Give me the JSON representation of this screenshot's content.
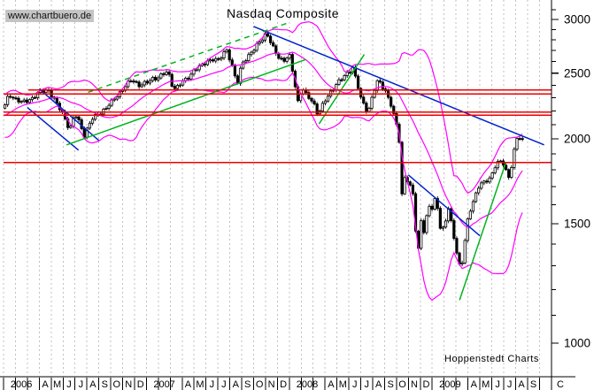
{
  "watermark": {
    "text": "www.chartbuero.de"
  },
  "header": {
    "title": "Nasdaq Composite"
  },
  "footer": {
    "credit": "Hoppenstedt Charts"
  },
  "colors": {
    "price": "#000000",
    "bollinger_band": "#ff00ff",
    "trend_line_blue": "#0022cc",
    "trend_line_green": "#00b41e",
    "level_line_red": "#ee0000",
    "grid": "#c0c0c0",
    "axis": "#000000",
    "watermark_bg": "#c4c4c4"
  },
  "chart_data": {
    "type": "candlestick",
    "title": "Nasdaq Composite",
    "timeframe": "weekly",
    "x_start": "2006-01",
    "x_end": "2009-09",
    "y_scale": "log",
    "ylim": [
      950,
      3150
    ],
    "grid": "vertical-dashed-monthly",
    "y_axis_side": "right",
    "y_ticks": [
      3000,
      2500,
      2000,
      1500,
      1000
    ],
    "y_minor_ticks": [
      3100,
      2900,
      2800,
      2700,
      2600,
      2400,
      2300,
      2200,
      2100,
      1900,
      1800,
      1700,
      1600,
      1400,
      1300,
      1200,
      1100
    ],
    "x_labels": [
      {
        "label": "2006",
        "span": 3
      },
      {
        "label": "A",
        "span": 1
      },
      {
        "label": "M",
        "span": 1
      },
      {
        "label": "J",
        "span": 1
      },
      {
        "label": "J",
        "span": 1
      },
      {
        "label": "A",
        "span": 1
      },
      {
        "label": "S",
        "span": 1
      },
      {
        "label": "O",
        "span": 1
      },
      {
        "label": "N",
        "span": 1
      },
      {
        "label": "D",
        "span": 1
      },
      {
        "label": "2007",
        "span": 3
      },
      {
        "label": "A",
        "span": 1
      },
      {
        "label": "M",
        "span": 1
      },
      {
        "label": "J",
        "span": 1
      },
      {
        "label": "J",
        "span": 1
      },
      {
        "label": "A",
        "span": 1
      },
      {
        "label": "S",
        "span": 1
      },
      {
        "label": "O",
        "span": 1
      },
      {
        "label": "N",
        "span": 1
      },
      {
        "label": "D",
        "span": 1
      },
      {
        "label": "2008",
        "span": 3
      },
      {
        "label": "A",
        "span": 1
      },
      {
        "label": "M",
        "span": 1
      },
      {
        "label": "J",
        "span": 1
      },
      {
        "label": "J",
        "span": 1
      },
      {
        "label": "A",
        "span": 1
      },
      {
        "label": "S",
        "span": 1
      },
      {
        "label": "O",
        "span": 1
      },
      {
        "label": "N",
        "span": 1
      },
      {
        "label": "D",
        "span": 1
      },
      {
        "label": "2009",
        "span": 3
      },
      {
        "label": "A",
        "span": 1
      },
      {
        "label": "M",
        "span": 1
      },
      {
        "label": "J",
        "span": 1
      },
      {
        "label": "J",
        "span": 1
      },
      {
        "label": "A",
        "span": 1
      },
      {
        "label": "S",
        "span": 1
      }
    ],
    "x_label_after_axis": "C",
    "bollinger": {
      "period": 20,
      "stddev": 2
    },
    "horizontal_levels": [
      {
        "price": 2361,
        "from_month": 2.1
      },
      {
        "price": 2329,
        "from_month": 0
      },
      {
        "price": 2190,
        "from_month": 0
      },
      {
        "price": 2167,
        "from_month": 0
      },
      {
        "price": 1846,
        "from_month": 0
      }
    ],
    "trend_lines": [
      {
        "id": "downtrend-2006-upper",
        "color": "blue",
        "dashed": false,
        "points": [
          [
            3.0,
            2370
          ],
          [
            8.0,
            1990
          ]
        ]
      },
      {
        "id": "downtrend-2006-lower",
        "color": "blue",
        "dashed": false,
        "points": [
          [
            2.0,
            2225
          ],
          [
            6.3,
            1925
          ]
        ]
      },
      {
        "id": "major-downtrend-2007-2009",
        "color": "blue",
        "dashed": false,
        "points": [
          [
            21.0,
            2930
          ],
          [
            45.4,
            1960
          ]
        ]
      },
      {
        "id": "downtrend-2008-2009",
        "color": "blue",
        "dashed": false,
        "points": [
          [
            34.0,
            1770
          ],
          [
            40.0,
            1440
          ]
        ]
      },
      {
        "id": "uptrend-2006-2008",
        "color": "green",
        "dashed": false,
        "points": [
          [
            5.3,
            1960
          ],
          [
            25.4,
            2620
          ]
        ]
      },
      {
        "id": "uptrend-2008",
        "color": "green",
        "dashed": false,
        "points": [
          [
            26.5,
            2105
          ],
          [
            30.3,
            2665
          ]
        ]
      },
      {
        "id": "uptrend-2009",
        "color": "green",
        "dashed": false,
        "points": [
          [
            38.3,
            1157
          ],
          [
            42.2,
            1850
          ]
        ]
      },
      {
        "id": "uptrend-channel-2006-2007-dashed",
        "color": "green",
        "dashed": true,
        "points": [
          [
            7.1,
            2343
          ],
          [
            24.0,
            2970
          ]
        ]
      }
    ],
    "anchor_closes_month_price": [
      [
        -5.5,
        2185
      ],
      [
        -4.6,
        2140
      ],
      [
        -3.8,
        2025
      ],
      [
        -3.2,
        2070
      ],
      [
        -2.5,
        2200
      ],
      [
        -1.8,
        2250
      ],
      [
        -1.2,
        2233
      ],
      [
        -0.5,
        2205
      ],
      [
        0.0,
        2240
      ],
      [
        0.35,
        2330
      ],
      [
        0.9,
        2290
      ],
      [
        1.4,
        2260
      ],
      [
        1.9,
        2281
      ],
      [
        2.5,
        2310
      ],
      [
        2.9,
        2340
      ],
      [
        3.6,
        2370
      ],
      [
        3.9,
        2323
      ],
      [
        4.4,
        2240
      ],
      [
        4.9,
        2179
      ],
      [
        5.45,
        2060
      ],
      [
        5.7,
        2130
      ],
      [
        5.9,
        2172
      ],
      [
        6.3,
        2110
      ],
      [
        6.65,
        2025
      ],
      [
        7.3,
        2135
      ],
      [
        7.9,
        2184
      ],
      [
        8.5,
        2220
      ],
      [
        8.9,
        2258
      ],
      [
        9.5,
        2330
      ],
      [
        9.9,
        2367
      ],
      [
        10.7,
        2450
      ],
      [
        10.9,
        2432
      ],
      [
        11.3,
        2400
      ],
      [
        11.9,
        2415
      ],
      [
        12.4,
        2460
      ],
      [
        12.9,
        2464
      ],
      [
        13.7,
        2515
      ],
      [
        14.0,
        2416
      ],
      [
        14.3,
        2370
      ],
      [
        14.9,
        2422
      ],
      [
        15.5,
        2480
      ],
      [
        15.9,
        2525
      ],
      [
        16.5,
        2560
      ],
      [
        16.9,
        2605
      ],
      [
        17.4,
        2620
      ],
      [
        17.9,
        2603
      ],
      [
        18.6,
        2720
      ],
      [
        19.1,
        2546
      ],
      [
        19.5,
        2400
      ],
      [
        19.9,
        2596
      ],
      [
        20.5,
        2650
      ],
      [
        20.9,
        2702
      ],
      [
        21.3,
        2780
      ],
      [
        21.97,
        2859
      ],
      [
        22.4,
        2750
      ],
      [
        22.9,
        2660
      ],
      [
        23.4,
        2600
      ],
      [
        23.9,
        2652
      ],
      [
        24.2,
        2500
      ],
      [
        24.7,
        2220
      ],
      [
        24.9,
        2390
      ],
      [
        25.3,
        2320
      ],
      [
        25.9,
        2271
      ],
      [
        26.3,
        2170
      ],
      [
        26.9,
        2279
      ],
      [
        27.5,
        2370
      ],
      [
        27.9,
        2413
      ],
      [
        28.4,
        2460
      ],
      [
        28.9,
        2523
      ],
      [
        29.2,
        2550
      ],
      [
        29.9,
        2293
      ],
      [
        30.5,
        2190
      ],
      [
        30.9,
        2326
      ],
      [
        31.35,
        2440
      ],
      [
        31.9,
        2368
      ],
      [
        32.35,
        2270
      ],
      [
        32.6,
        2180
      ],
      [
        32.9,
        2092
      ],
      [
        33.2,
        1950
      ],
      [
        33.35,
        1650
      ],
      [
        33.6,
        1770
      ],
      [
        33.9,
        1721
      ],
      [
        34.3,
        1650
      ],
      [
        34.66,
        1316
      ],
      [
        34.9,
        1536
      ],
      [
        35.2,
        1460
      ],
      [
        35.6,
        1590
      ],
      [
        35.9,
        1577
      ],
      [
        36.2,
        1650
      ],
      [
        36.6,
        1470
      ],
      [
        36.9,
        1476
      ],
      [
        37.25,
        1580
      ],
      [
        37.9,
        1378
      ],
      [
        38.3,
        1269
      ],
      [
        38.9,
        1529
      ],
      [
        39.3,
        1620
      ],
      [
        39.9,
        1717
      ],
      [
        40.3,
        1720
      ],
      [
        40.9,
        1774
      ],
      [
        41.3,
        1850
      ],
      [
        41.9,
        1835
      ],
      [
        42.1,
        1800
      ],
      [
        42.35,
        1747
      ],
      [
        42.9,
        1979
      ],
      [
        43.2,
        2010
      ],
      [
        43.6,
        1985
      ]
    ]
  }
}
